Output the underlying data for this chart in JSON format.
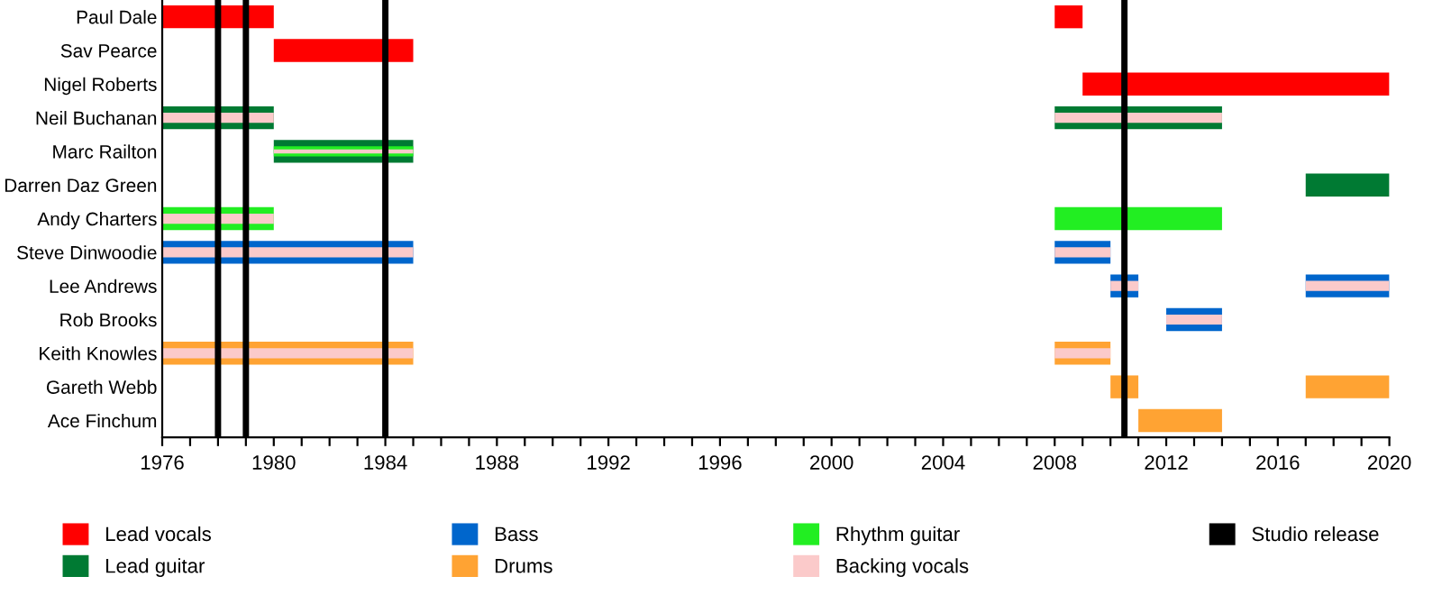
{
  "chart_data": {
    "type": "bar",
    "orientation": "horizontal",
    "legend": "bottom",
    "grid": false,
    "categories": [
      "Paul Dale",
      "Sav Pearce",
      "Nigel Roberts",
      "Neil Buchanan",
      "Marc Railton",
      "Darren Daz Green",
      "Andy Charters",
      "Steve Dinwoodie",
      "Lee Andrews",
      "Rob Brooks",
      "Keith Knowles",
      "Gareth Webb",
      "Ace Finchum"
    ],
    "xlim": [
      1976,
      2020
    ],
    "xticks": [
      1976,
      {
        "value": 1977,
        "label": null
      },
      {
        "value": 1978,
        "label": null
      },
      {
        "value": 1979,
        "label": null
      },
      1980,
      {
        "value": 1981,
        "label": null
      },
      {
        "value": 1982,
        "label": null
      },
      {
        "value": 1983,
        "label": null
      },
      1984,
      {
        "value": 1985,
        "label": null
      },
      {
        "value": 1986,
        "label": null
      },
      {
        "value": 1987,
        "label": null
      },
      1988,
      {
        "value": 1989,
        "label": null
      },
      {
        "value": 1990,
        "label": null
      },
      {
        "value": 1991,
        "label": null
      },
      1992,
      {
        "value": 1993,
        "label": null
      },
      {
        "value": 1994,
        "label": null
      },
      {
        "value": 1995,
        "label": null
      },
      1996,
      {
        "value": 1997,
        "label": null
      },
      {
        "value": 1998,
        "label": null
      },
      {
        "value": 1999,
        "label": null
      },
      2000,
      {
        "value": 2001,
        "label": null
      },
      {
        "value": 2002,
        "label": null
      },
      {
        "value": 2003,
        "label": null
      },
      2004,
      {
        "value": 2005,
        "label": null
      },
      {
        "value": 2006,
        "label": null
      },
      {
        "value": 2007,
        "label": null
      },
      2008,
      {
        "value": 2009,
        "label": null
      },
      {
        "value": 2010,
        "label": null
      },
      {
        "value": 2011,
        "label": null
      },
      2012,
      {
        "value": 2013,
        "label": null
      },
      {
        "value": 2014,
        "label": null
      },
      {
        "value": 2015,
        "label": null
      },
      2016,
      {
        "value": 2017,
        "label": null
      },
      {
        "value": 2018,
        "label": null
      },
      {
        "value": 2019,
        "label": null
      },
      2020
    ],
    "series": [
      {
        "name": "Lead vocals",
        "color": "#ff0000",
        "base": [
          1976,
          1980,
          2009,
          null,
          null,
          null,
          null,
          null,
          null,
          null,
          null,
          null,
          null
        ],
        "values": [
          4,
          5,
          11,
          null,
          null,
          null,
          null,
          null,
          null,
          null,
          null,
          null,
          null
        ]
      },
      {
        "name": "Lead guitar",
        "color": "#007a33",
        "base": [
          null,
          null,
          null,
          1976,
          1980,
          2017,
          null,
          null,
          null,
          null,
          null,
          null,
          null
        ],
        "values": [
          null,
          null,
          null,
          4,
          5,
          3,
          null,
          null,
          null,
          null,
          null,
          null,
          null
        ]
      },
      {
        "name": "Bass",
        "color": "#0066cc",
        "base": [
          null,
          null,
          null,
          null,
          null,
          null,
          null,
          1976,
          2010,
          2012,
          null,
          null,
          null
        ],
        "values": [
          null,
          null,
          null,
          null,
          null,
          null,
          null,
          9,
          1,
          2,
          null,
          null,
          null
        ]
      },
      {
        "name": "Drums",
        "color": "#ffa333",
        "base": [
          null,
          null,
          null,
          null,
          null,
          null,
          null,
          null,
          null,
          null,
          1976,
          2010,
          2011
        ],
        "values": [
          null,
          null,
          null,
          null,
          null,
          null,
          null,
          null,
          null,
          null,
          9,
          1,
          3
        ]
      },
      {
        "name": "Rhythm guitar",
        "color": "#22ee22",
        "base": [
          null,
          null,
          null,
          null,
          1980,
          null,
          1976,
          null,
          null,
          null,
          null,
          null,
          null
        ],
        "values": [
          null,
          null,
          null,
          null,
          5,
          null,
          4,
          null,
          null,
          null,
          null,
          null,
          null
        ]
      },
      {
        "name": "Backing vocals",
        "color": "#fbcaca",
        "base": [
          null,
          null,
          null,
          1976,
          1980,
          null,
          1976,
          1976,
          2010,
          2012,
          1976,
          null,
          null
        ],
        "values": [
          null,
          null,
          null,
          4,
          5,
          null,
          4,
          9,
          1,
          2,
          9,
          null,
          null
        ]
      },
      {
        "color": "#ff0000",
        "base": [
          2008,
          null,
          null,
          null,
          null,
          null,
          null,
          null,
          null,
          null,
          null,
          null,
          null
        ],
        "values": [
          1,
          null,
          null,
          null,
          null,
          null,
          null,
          null,
          null,
          null,
          null,
          null,
          null
        ]
      },
      {
        "color": "#007a33",
        "base": [
          null,
          null,
          null,
          2008,
          null,
          null,
          null,
          null,
          null,
          null,
          null,
          null,
          null
        ],
        "values": [
          null,
          null,
          null,
          6,
          null,
          null,
          null,
          null,
          null,
          null,
          null,
          null,
          null
        ]
      },
      {
        "color": "#0066cc",
        "base": [
          null,
          null,
          null,
          null,
          null,
          null,
          null,
          2008,
          2017,
          null,
          null,
          null,
          null
        ],
        "values": [
          null,
          null,
          null,
          null,
          null,
          null,
          null,
          2,
          3,
          null,
          null,
          null,
          null
        ]
      },
      {
        "color": "#ffa333",
        "base": [
          null,
          null,
          null,
          null,
          null,
          null,
          null,
          null,
          null,
          null,
          2008,
          2017,
          null
        ],
        "values": [
          null,
          null,
          null,
          null,
          null,
          null,
          null,
          null,
          null,
          null,
          2,
          3,
          null
        ]
      },
      {
        "color": "#22ee22",
        "base": [
          null,
          null,
          null,
          null,
          null,
          null,
          2008,
          null,
          null,
          null,
          null,
          null,
          null
        ],
        "values": [
          null,
          null,
          null,
          null,
          null,
          null,
          6,
          null,
          null,
          null,
          null,
          null,
          null
        ]
      },
      {
        "color": "#fbcaca",
        "base": [
          null,
          null,
          null,
          2008,
          null,
          null,
          null,
          2008,
          2017,
          null,
          2008,
          null,
          null
        ],
        "values": [
          null,
          null,
          null,
          6,
          null,
          null,
          null,
          2,
          3,
          null,
          2,
          null,
          null
        ]
      }
    ],
    "ref_lines": [
      {
        "axis": "x",
        "value": 1978,
        "label": "Studio release",
        "color": "#000000"
      },
      {
        "axis": "x",
        "value": 1979,
        "label": null,
        "color": "#000000"
      },
      {
        "axis": "x",
        "value": 1984,
        "label": null,
        "color": "#000000"
      },
      {
        "axis": "x",
        "value": 2010.5,
        "label": null,
        "color": "#000000"
      }
    ]
  }
}
